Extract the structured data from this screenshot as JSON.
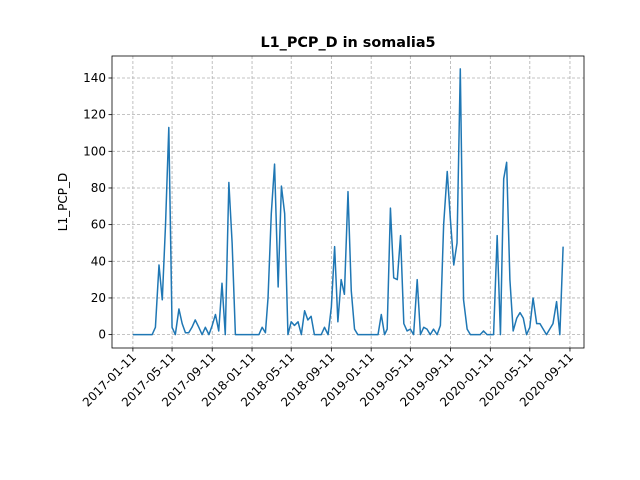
{
  "chart_data": {
    "type": "line",
    "title": "L1_PCP_D in somalia5",
    "ylabel": "L1_PCP_D",
    "color": "#1f77b4",
    "grid": true,
    "x": [
      "2017-01-11",
      "2017-01-21",
      "2017-02-01",
      "2017-02-11",
      "2017-02-21",
      "2017-03-01",
      "2017-03-11",
      "2017-03-21",
      "2017-04-01",
      "2017-04-11",
      "2017-04-21",
      "2017-05-01",
      "2017-05-11",
      "2017-05-21",
      "2017-06-01",
      "2017-06-11",
      "2017-06-21",
      "2017-07-01",
      "2017-07-11",
      "2017-07-21",
      "2017-08-01",
      "2017-08-11",
      "2017-08-21",
      "2017-09-01",
      "2017-09-11",
      "2017-09-21",
      "2017-10-01",
      "2017-10-11",
      "2017-10-21",
      "2017-11-01",
      "2017-11-11",
      "2017-11-21",
      "2017-12-01",
      "2017-12-11",
      "2017-12-21",
      "2018-01-01",
      "2018-01-11",
      "2018-01-21",
      "2018-02-01",
      "2018-02-11",
      "2018-02-21",
      "2018-03-01",
      "2018-03-11",
      "2018-03-21",
      "2018-04-01",
      "2018-04-11",
      "2018-04-21",
      "2018-05-01",
      "2018-05-11",
      "2018-05-21",
      "2018-06-01",
      "2018-06-11",
      "2018-06-21",
      "2018-07-01",
      "2018-07-11",
      "2018-07-21",
      "2018-08-01",
      "2018-08-11",
      "2018-08-21",
      "2018-09-01",
      "2018-09-11",
      "2018-09-21",
      "2018-10-01",
      "2018-10-11",
      "2018-10-21",
      "2018-11-01",
      "2018-11-11",
      "2018-11-21",
      "2018-12-01",
      "2018-12-11",
      "2018-12-21",
      "2019-01-01",
      "2019-01-11",
      "2019-01-21",
      "2019-02-01",
      "2019-02-11",
      "2019-02-21",
      "2019-03-01",
      "2019-03-11",
      "2019-03-21",
      "2019-04-01",
      "2019-04-11",
      "2019-04-21",
      "2019-05-01",
      "2019-05-11",
      "2019-05-21",
      "2019-06-01",
      "2019-06-11",
      "2019-06-21",
      "2019-07-01",
      "2019-07-11",
      "2019-07-21",
      "2019-08-01",
      "2019-08-11",
      "2019-08-21",
      "2019-09-01",
      "2019-09-11",
      "2019-09-21",
      "2019-10-01",
      "2019-10-11",
      "2019-10-21",
      "2019-11-01",
      "2019-11-11",
      "2019-11-21",
      "2019-12-01",
      "2019-12-11",
      "2019-12-21",
      "2020-01-01",
      "2020-01-11",
      "2020-01-21",
      "2020-02-01",
      "2020-02-11",
      "2020-02-21",
      "2020-03-01",
      "2020-03-11",
      "2020-03-21",
      "2020-04-01",
      "2020-04-11",
      "2020-04-21",
      "2020-05-01",
      "2020-05-11",
      "2020-05-21",
      "2020-06-01",
      "2020-06-11",
      "2020-06-21",
      "2020-07-01",
      "2020-07-11",
      "2020-07-21",
      "2020-08-01",
      "2020-08-11",
      "2020-08-21"
    ],
    "values": [
      0,
      0,
      0,
      0,
      0,
      0,
      0,
      4,
      38,
      19,
      60,
      113,
      4,
      0,
      14,
      6,
      1,
      1,
      4,
      8,
      4,
      0,
      4,
      0,
      5,
      11,
      2,
      28,
      0,
      83,
      50,
      0,
      0,
      0,
      0,
      0,
      0,
      0,
      0,
      4,
      1,
      20,
      66,
      93,
      26,
      81,
      66,
      0,
      7,
      5,
      7,
      0,
      13,
      8,
      10,
      0,
      0,
      0,
      4,
      0,
      15,
      48,
      7,
      30,
      22,
      78,
      24,
      3,
      0,
      0,
      0,
      0,
      0,
      0,
      0,
      11,
      0,
      3,
      69,
      31,
      30,
      54,
      6,
      2,
      3,
      0,
      30,
      0,
      4,
      3,
      0,
      3,
      0,
      5,
      60,
      89,
      62,
      38,
      50,
      145,
      19,
      3,
      0,
      0,
      0,
      0,
      2,
      0,
      0,
      0,
      54,
      0,
      85,
      94,
      30,
      2,
      9,
      12,
      9,
      0,
      4,
      20,
      6,
      6,
      3,
      0,
      3,
      6,
      18,
      0,
      48
    ],
    "xlim": [
      "2016-11-08",
      "2020-10-24"
    ],
    "xticks": [
      "2017-01-11",
      "2017-05-11",
      "2017-09-11",
      "2018-01-11",
      "2018-05-11",
      "2018-09-11",
      "2019-01-11",
      "2019-05-11",
      "2019-09-11",
      "2020-01-11",
      "2020-05-11",
      "2020-09-11"
    ],
    "ylim": [
      -7.3,
      152
    ],
    "yticks": [
      0,
      20,
      40,
      60,
      80,
      100,
      120,
      140
    ]
  }
}
